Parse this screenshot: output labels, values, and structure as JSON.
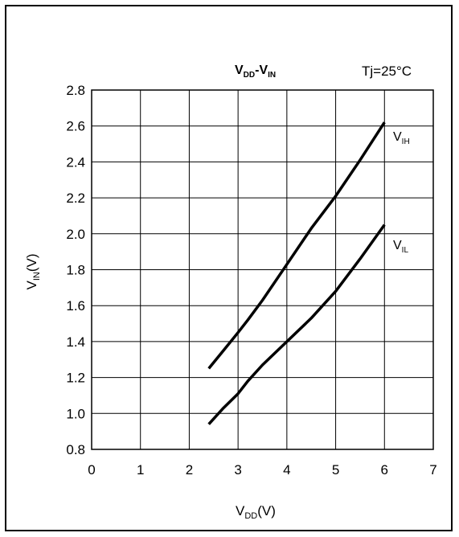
{
  "chart_data": {
    "type": "line",
    "title_main": "V",
    "title_sub1": "DD",
    "title_dash": "-V",
    "title_sub2": "IN",
    "annotation": "Tj=25°C",
    "xlabel_main": "V",
    "xlabel_sub": "DD",
    "xlabel_unit": "(V)",
    "ylabel_main": "V",
    "ylabel_sub": "IN",
    "ylabel_unit": "(V)",
    "xlim": [
      0,
      7
    ],
    "ylim": [
      0.8,
      2.8
    ],
    "x_ticks": [
      "0",
      "1",
      "2",
      "3",
      "4",
      "5",
      "6",
      "7"
    ],
    "y_ticks": [
      "0.8",
      "1.0",
      "1.2",
      "1.4",
      "1.6",
      "1.8",
      "2.0",
      "2.2",
      "2.4",
      "2.6",
      "2.8"
    ],
    "grid": true,
    "series": [
      {
        "name": "V_IH",
        "label_main": "V",
        "label_sub": "IH",
        "x": [
          2.4,
          2.7,
          3.0,
          3.2,
          3.5,
          4.0,
          4.5,
          5.0,
          5.5,
          6.0
        ],
        "values": [
          1.25,
          1.35,
          1.45,
          1.52,
          1.63,
          1.83,
          2.03,
          2.21,
          2.41,
          2.62
        ]
      },
      {
        "name": "V_IL",
        "label_main": "V",
        "label_sub": "IL",
        "x": [
          2.4,
          2.7,
          3.0,
          3.2,
          3.5,
          4.0,
          4.5,
          5.0,
          5.5,
          6.0
        ],
        "values": [
          0.94,
          1.03,
          1.11,
          1.18,
          1.27,
          1.4,
          1.53,
          1.68,
          1.86,
          2.05
        ]
      }
    ]
  },
  "colors": {
    "line": "#000000",
    "grid": "#000000",
    "background": "#ffffff"
  }
}
